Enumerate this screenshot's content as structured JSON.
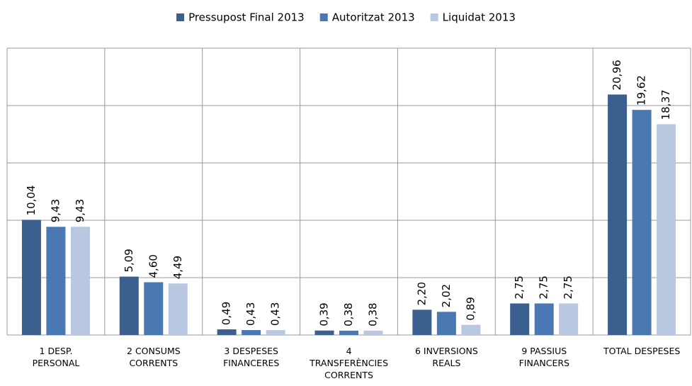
{
  "chart_data": {
    "type": "bar",
    "categories": [
      "1  DESP.\nPERSONAL",
      "2  CONSUMS\nCORRENTS",
      "3  DESPESES\nFINANCERES",
      "4\nTRANSFERÈNCIES\nCORRENTS",
      "6  INVERSIONS\nREALS",
      "9  PASSIUS\nFINANCERS",
      "TOTAL DESPESES"
    ],
    "series": [
      {
        "name": "Pressupost Final 2013",
        "color": "#3b5f8f",
        "values": [
          10.04,
          5.09,
          0.49,
          0.39,
          2.2,
          2.75,
          20.96
        ],
        "value_labels": [
          "10,04",
          "5,09",
          "0,49",
          "0,39",
          "2,20",
          "2,75",
          "20,96"
        ]
      },
      {
        "name": "Autoritzat 2013",
        "color": "#4a78b2",
        "values": [
          9.43,
          4.6,
          0.43,
          0.38,
          2.02,
          2.75,
          19.62
        ],
        "value_labels": [
          "9,43",
          "4,60",
          "0,43",
          "0,38",
          "2,02",
          "2,75",
          "19,62"
        ]
      },
      {
        "name": "Liquidat 2013",
        "color": "#b9c7e0",
        "values": [
          9.43,
          4.49,
          0.43,
          0.38,
          0.89,
          2.75,
          18.37
        ],
        "value_labels": [
          "9,43",
          "4,49",
          "0,43",
          "0,38",
          "0,89",
          "2,75",
          "18,37"
        ]
      }
    ],
    "ylim": [
      0,
      25
    ],
    "yticks": [
      0,
      5,
      10,
      15,
      20,
      25
    ],
    "grid": true,
    "legend": "top"
  }
}
